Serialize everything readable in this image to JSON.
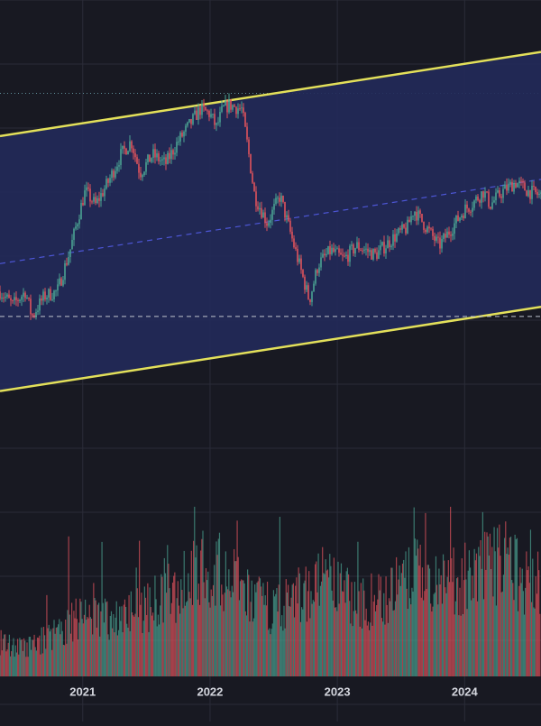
{
  "chart_data": {
    "type": "candlestick",
    "title": "",
    "x_ticks": [
      "2021",
      "2022",
      "2023",
      "2024"
    ],
    "x_range": [
      2020.35,
      2024.6
    ],
    "price_range_visible": [
      -3,
      100
    ],
    "colors": {
      "background": "#181922",
      "grid": "#2a2c38",
      "channel_fill": "#222a5a",
      "channel_edge": "#e3e05a",
      "midline": "#4d56d6",
      "up": "#4aa392",
      "down": "#e0535c",
      "support_line": "#bfc3cc",
      "dotted_high": "#5f8f9a",
      "axis_text": "#d4d6de"
    },
    "channel": {
      "upper": [
        [
          2020.35,
          70.1
        ],
        [
          2024.6,
          88.6
        ]
      ],
      "lower": [
        [
          2020.35,
          14.1
        ],
        [
          2024.6,
          32.6
        ]
      ],
      "mid": [
        [
          2020.35,
          42.1
        ],
        [
          2024.6,
          60.6
        ]
      ]
    },
    "support_level": 30.5,
    "high_level": 79.5,
    "price_path": [
      [
        2020.35,
        36
      ],
      [
        2020.45,
        33
      ],
      [
        2020.55,
        36
      ],
      [
        2020.6,
        30.5
      ],
      [
        2020.7,
        35
      ],
      [
        2020.8,
        36
      ],
      [
        2020.9,
        45
      ],
      [
        2020.98,
        54
      ],
      [
        2021.02,
        58
      ],
      [
        2021.1,
        55
      ],
      [
        2021.2,
        60
      ],
      [
        2021.3,
        66
      ],
      [
        2021.38,
        69
      ],
      [
        2021.45,
        62
      ],
      [
        2021.55,
        66
      ],
      [
        2021.65,
        64
      ],
      [
        2021.75,
        69
      ],
      [
        2021.85,
        73
      ],
      [
        2021.92,
        76
      ],
      [
        2022.0,
        75
      ],
      [
        2022.05,
        72
      ],
      [
        2022.1,
        76
      ],
      [
        2022.15,
        77
      ],
      [
        2022.25,
        76
      ],
      [
        2022.3,
        67
      ],
      [
        2022.35,
        57
      ],
      [
        2022.45,
        51
      ],
      [
        2022.55,
        57
      ],
      [
        2022.6,
        52
      ],
      [
        2022.65,
        47
      ],
      [
        2022.72,
        40
      ],
      [
        2022.78,
        34
      ],
      [
        2022.85,
        42
      ],
      [
        2022.95,
        45
      ],
      [
        2023.05,
        43
      ],
      [
        2023.15,
        46
      ],
      [
        2023.3,
        44
      ],
      [
        2023.45,
        48
      ],
      [
        2023.55,
        50
      ],
      [
        2023.6,
        54
      ],
      [
        2023.7,
        50
      ],
      [
        2023.8,
        46
      ],
      [
        2023.9,
        50
      ],
      [
        2024.0,
        54
      ],
      [
        2024.05,
        55
      ],
      [
        2024.15,
        58
      ],
      [
        2024.2,
        55
      ],
      [
        2024.3,
        58
      ],
      [
        2024.4,
        60
      ],
      [
        2024.5,
        58
      ],
      [
        2024.6,
        57
      ]
    ],
    "volume_range": [
      0,
      100
    ],
    "volume_profile": [
      [
        2020.35,
        22
      ],
      [
        2020.55,
        18
      ],
      [
        2020.8,
        28
      ],
      [
        2021.0,
        40
      ],
      [
        2021.25,
        38
      ],
      [
        2021.4,
        42
      ],
      [
        2021.7,
        52
      ],
      [
        2021.85,
        66
      ],
      [
        2022.0,
        72
      ],
      [
        2022.2,
        60
      ],
      [
        2022.35,
        48
      ],
      [
        2022.5,
        44
      ],
      [
        2022.75,
        55
      ],
      [
        2022.9,
        62
      ],
      [
        2023.2,
        46
      ],
      [
        2023.5,
        58
      ],
      [
        2023.65,
        68
      ],
      [
        2023.9,
        60
      ],
      [
        2024.1,
        65
      ],
      [
        2024.25,
        72
      ],
      [
        2024.45,
        66
      ],
      [
        2024.6,
        60
      ]
    ]
  }
}
